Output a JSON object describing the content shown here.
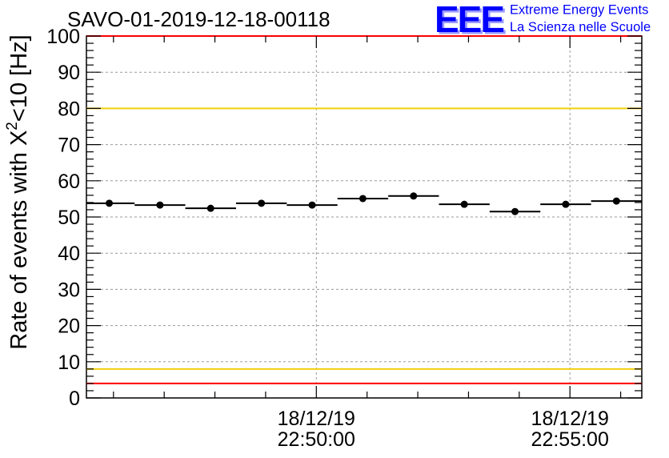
{
  "chart_data": {
    "type": "scatter",
    "title": "SAVO-01-2019-12-18-00118",
    "ylabel": {
      "main": "Rate of events with X",
      "superscript": "2",
      "rest": "<10 [Hz]"
    },
    "ylim": [
      0,
      100
    ],
    "y_major_step": 10,
    "y_minor_step": 2,
    "ytick_labels": [
      "0",
      "10",
      "20",
      "30",
      "40",
      "50",
      "60",
      "70",
      "80",
      "90",
      "100"
    ],
    "xlim_seconds_of_day": [
      81928,
      82585
    ],
    "x_major_step_s": 300,
    "x_minor_step_s": 60,
    "xtick_labels": [
      {
        "date": "18/12/19",
        "time": "22:50:00"
      },
      {
        "date": "18/12/19",
        "time": "22:55:00"
      }
    ],
    "grid": true,
    "series": [
      {
        "bin_width_s": 60,
        "x_seconds_of_day": [
          81955,
          82015,
          82075,
          82135,
          82195,
          82255,
          82315,
          82375,
          82435,
          82495,
          82555
        ],
        "values": [
          53.8,
          53.3,
          52.4,
          53.8,
          53.3,
          55.1,
          55.8,
          53.5,
          51.5,
          53.5,
          54.4
        ],
        "color": "#000000"
      }
    ],
    "reference_lines": [
      {
        "value": 100,
        "color": "#ff0000"
      },
      {
        "value": 80,
        "color": "#f2cf0c"
      },
      {
        "value": 8,
        "color": "#f2cf0c"
      },
      {
        "value": 4,
        "color": "#ff0000"
      }
    ],
    "grid_color": "#9a9a9a"
  },
  "logo": {
    "mark": "EEE",
    "line1": "Extreme Energy Events",
    "line2": "La Scienza nelle Scuole",
    "color": "#0000ff",
    "shadow_color": "#9a9aff"
  }
}
